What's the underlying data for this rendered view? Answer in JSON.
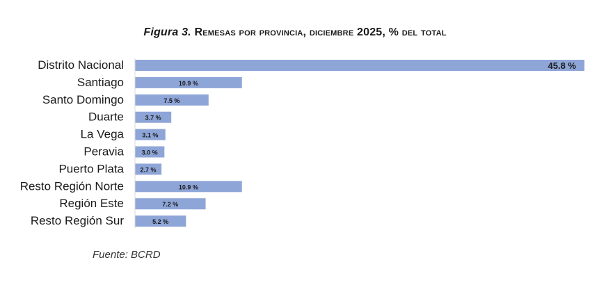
{
  "title": {
    "prefix": "Figura 3.",
    "text": "Remesas por provincia, diciembre 2025, % del total"
  },
  "source": "Fuente: BCRD",
  "colors": {
    "bar": "#8ea5d8",
    "label": "#1a1a1a"
  },
  "chart_data": {
    "type": "bar",
    "orientation": "horizontal",
    "categories": [
      "Distrito Nacional",
      "Santiago",
      "Santo Domingo",
      "Duarte",
      "La Vega",
      "Peravia",
      "Puerto Plata",
      "Resto Región Norte",
      "Región Este",
      "Resto Región Sur"
    ],
    "values": [
      45.8,
      10.9,
      7.5,
      3.7,
      3.1,
      3.0,
      2.7,
      10.9,
      7.2,
      5.2
    ],
    "data_labels": [
      "45.8 %",
      "10.9 %",
      "7.5 %",
      "3.7 %",
      "3.1 %",
      "3.0 %",
      "2.7 %",
      "10.9 %",
      "7.2 %",
      "5.2 %"
    ],
    "xlim": [
      0,
      45.8
    ],
    "grid": false,
    "legend": false
  }
}
